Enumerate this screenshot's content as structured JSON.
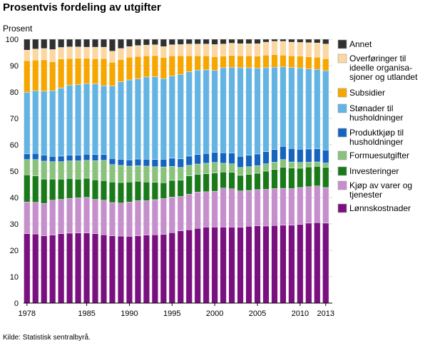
{
  "title": "Prosentvis fordeling av utgifter",
  "source": "Kilde: Statistisk sentralbyrå.",
  "chart_data": {
    "type": "bar",
    "stacked": true,
    "title": "Prosentvis fordeling av utgifter",
    "ylabel": "Prosent",
    "xlabel": "",
    "ylim": [
      0,
      100
    ],
    "yticks": [
      0,
      10,
      20,
      30,
      40,
      50,
      60,
      70,
      80,
      90,
      100
    ],
    "grid": true,
    "legend_position": "right",
    "categories": [
      1978,
      1979,
      1980,
      1981,
      1982,
      1983,
      1984,
      1985,
      1986,
      1987,
      1988,
      1989,
      1990,
      1991,
      1992,
      1993,
      1994,
      1995,
      1996,
      1997,
      1998,
      1999,
      2000,
      2001,
      2002,
      2003,
      2004,
      2005,
      2006,
      2007,
      2008,
      2009,
      2010,
      2011,
      2012,
      2013
    ],
    "xtick_labels": [
      "1978",
      "1985",
      "1990",
      "1995",
      "2000",
      "2005",
      "2010",
      "2013"
    ],
    "series": [
      {
        "name": "Lønnskostnader",
        "color": "#7a0f7f",
        "values": [
          26.3,
          26.2,
          25.5,
          25.8,
          26.3,
          26.5,
          26.6,
          26.6,
          26.3,
          25.9,
          25.5,
          25.4,
          25.3,
          25.5,
          25.8,
          25.9,
          26.0,
          26.7,
          27.4,
          27.8,
          28.3,
          28.8,
          28.8,
          28.8,
          28.8,
          28.7,
          29.1,
          29.3,
          29.2,
          29.4,
          29.5,
          29.5,
          29.8,
          30.3,
          30.5,
          30.3
        ]
      },
      {
        "name": "Kjøp av varer og tjenester",
        "color": "#c58fcc",
        "values": [
          12.0,
          12.0,
          12.3,
          13.2,
          13.0,
          13.2,
          13.3,
          13.5,
          13.0,
          13.1,
          12.6,
          12.5,
          13.0,
          13.3,
          13.0,
          13.3,
          13.6,
          13.5,
          13.0,
          13.5,
          13.8,
          13.4,
          13.6,
          14.8,
          14.5,
          13.8,
          13.6,
          13.7,
          13.9,
          14.0,
          14.0,
          13.9,
          14.0,
          13.8,
          13.9,
          13.5
        ]
      },
      {
        "name": "Investeringer",
        "color": "#1a7a1a",
        "values": [
          10.3,
          10.0,
          9.2,
          8.0,
          7.7,
          7.5,
          7.1,
          7.2,
          7.4,
          7.4,
          7.8,
          7.8,
          7.6,
          7.4,
          7.1,
          6.6,
          6.0,
          6.3,
          6.2,
          6.9,
          6.7,
          6.8,
          6.9,
          6.1,
          6.3,
          5.9,
          6.1,
          6.2,
          6.9,
          7.2,
          8.0,
          7.8,
          7.3,
          7.5,
          7.4,
          7.6
        ]
      },
      {
        "name": "Formuesutgifter",
        "color": "#8ac27d",
        "values": [
          5.8,
          6.2,
          6.8,
          6.6,
          6.6,
          6.7,
          6.9,
          6.8,
          7.3,
          7.7,
          6.6,
          6.5,
          6.0,
          5.9,
          6.0,
          5.9,
          6.0,
          5.3,
          4.8,
          4.0,
          3.9,
          4.0,
          4.0,
          3.3,
          3.2,
          3.0,
          2.9,
          2.9,
          2.8,
          2.8,
          2.9,
          2.3,
          2.2,
          1.8,
          1.7,
          1.7
        ]
      },
      {
        "name": "Produktkjøp til husholdninger",
        "color": "#1565c0",
        "values": [
          2.2,
          2.3,
          2.3,
          2.0,
          2.1,
          2.2,
          2.2,
          2.3,
          2.3,
          2.2,
          2.3,
          2.3,
          2.4,
          2.5,
          2.6,
          2.7,
          2.9,
          3.1,
          3.3,
          3.5,
          3.6,
          3.7,
          3.8,
          4.0,
          4.1,
          4.2,
          4.3,
          4.4,
          4.6,
          4.8,
          5.0,
          5.1,
          5.0,
          5.0,
          5.0,
          4.9
        ]
      },
      {
        "name": "Stønader til husholdninger",
        "color": "#63b4e3",
        "values": [
          23.3,
          23.8,
          24.2,
          24.9,
          25.8,
          26.5,
          26.7,
          26.8,
          26.8,
          26.1,
          27.5,
          29.4,
          30.3,
          30.4,
          31.2,
          31.4,
          30.6,
          31.2,
          32.0,
          32.0,
          32.0,
          31.7,
          31.1,
          32.2,
          32.5,
          33.6,
          33.2,
          32.5,
          31.8,
          31.2,
          30.1,
          30.7,
          30.8,
          30.3,
          30.1,
          30.1
        ]
      },
      {
        "name": "Subsidier",
        "color": "#f7a600",
        "values": [
          12.0,
          11.6,
          11.9,
          11.0,
          11.0,
          10.1,
          10.0,
          9.6,
          9.5,
          10.3,
          9.0,
          8.4,
          8.6,
          8.5,
          8.0,
          8.0,
          8.0,
          7.6,
          7.0,
          6.0,
          5.4,
          5.3,
          5.2,
          4.4,
          4.5,
          4.5,
          4.5,
          4.6,
          4.8,
          4.8,
          4.5,
          4.4,
          4.5,
          4.6,
          4.6,
          4.5
        ]
      },
      {
        "name": "Overføringer til ideelle organisasjoner og utlandet",
        "color": "#fcd7a1",
        "values": [
          4.0,
          4.2,
          4.3,
          4.6,
          4.4,
          4.4,
          4.3,
          4.2,
          4.4,
          4.3,
          4.2,
          4.2,
          4.0,
          4.1,
          4.1,
          4.1,
          4.1,
          4.2,
          4.3,
          4.5,
          4.5,
          4.5,
          4.6,
          4.6,
          4.6,
          4.6,
          4.6,
          4.7,
          4.9,
          5.0,
          5.2,
          5.2,
          5.2,
          5.4,
          5.4,
          5.6
        ]
      },
      {
        "name": "Annet",
        "color": "#303030",
        "values": [
          4.1,
          3.7,
          3.5,
          3.9,
          3.1,
          2.9,
          2.9,
          3.0,
          3.0,
          3.0,
          4.5,
          3.5,
          2.8,
          2.4,
          2.2,
          2.1,
          2.8,
          2.1,
          2.0,
          1.8,
          1.8,
          1.8,
          2.0,
          1.8,
          1.5,
          1.7,
          1.7,
          1.7,
          1.1,
          0.8,
          0.8,
          1.1,
          1.2,
          1.3,
          1.4,
          1.8
        ]
      }
    ],
    "legend": [
      {
        "lines": [
          "Annet"
        ],
        "series": 8
      },
      {
        "lines": [
          "Overføringer til",
          "ideelle organisa-",
          "sjoner og utlandet"
        ],
        "series": 7
      },
      {
        "lines": [
          "Subsidier"
        ],
        "series": 6
      },
      {
        "lines": [
          "Stønader til",
          "husholdninger"
        ],
        "series": 5
      },
      {
        "lines": [
          "Produktkjøp til",
          "husholdninger"
        ],
        "series": 4
      },
      {
        "lines": [
          "Formuesutgifter"
        ],
        "series": 3
      },
      {
        "lines": [
          "Investeringer"
        ],
        "series": 2
      },
      {
        "lines": [
          "Kjøp av varer og",
          "tjenester"
        ],
        "series": 1
      },
      {
        "lines": [
          "Lønnskostnader"
        ],
        "series": 0
      }
    ]
  }
}
